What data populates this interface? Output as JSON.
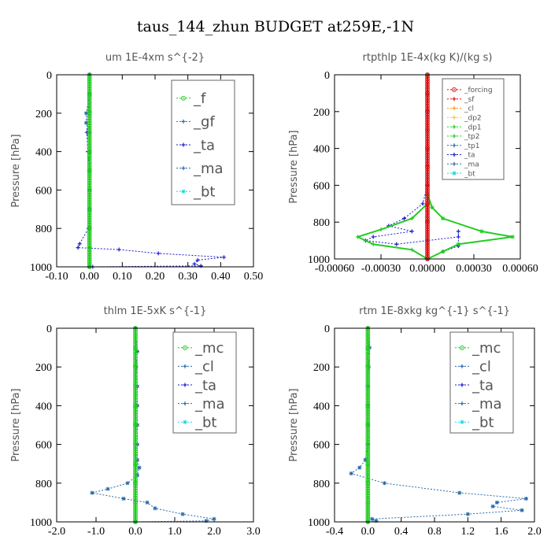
{
  "title": "taus_144_zhun  BUDGET at259E,-1N",
  "colors": {
    "green": "#22cc22",
    "blue": "#1a1acc",
    "steel": "#2a6aa8",
    "cyan": "#18d8e0",
    "red": "#dd1111",
    "orange": "#ff9922",
    "yellow": "#e8d020"
  },
  "chart_data": [
    {
      "type": "line",
      "title": "um   1E-4xm s^{-2}",
      "ylabel": "Pressure [hPa]",
      "xlim": [
        -0.1,
        0.5
      ],
      "ylim": [
        1000,
        0
      ],
      "xticks": [
        "-0.10",
        "0.00",
        "0.10",
        "0.20",
        "0.30",
        "0.40",
        "0.50"
      ],
      "xtick_values": [
        -0.1,
        0.0,
        0.1,
        0.2,
        0.3,
        0.4,
        0.5
      ],
      "yticks": [
        "0",
        "200",
        "400",
        "600",
        "800",
        "1000"
      ],
      "ytick_values": [
        0,
        200,
        400,
        600,
        800,
        1000
      ],
      "legend": {
        "position": "top-right",
        "labels": [
          "_f",
          "_gf",
          "_ta",
          "_ma",
          "_bt"
        ]
      },
      "series": [
        {
          "name": "_ta",
          "color": "blue",
          "marker": "plus",
          "points": [
            [
              0,
              0
            ],
            [
              0,
              100
            ],
            [
              -0.005,
              200
            ],
            [
              -0.008,
              300
            ],
            [
              -0.005,
              400
            ],
            [
              0,
              500
            ],
            [
              0,
              600
            ],
            [
              0,
              700
            ],
            [
              -0.003,
              800
            ],
            [
              -0.03,
              880
            ],
            [
              -0.035,
              900
            ],
            [
              0.09,
              910
            ],
            [
              0.21,
              930
            ],
            [
              0.41,
              950
            ],
            [
              0.33,
              965
            ],
            [
              0.32,
              985
            ],
            [
              0.34,
              995
            ],
            [
              0.01,
              1000
            ]
          ]
        },
        {
          "name": "_gf",
          "color": "steel",
          "marker": "star",
          "points": [
            [
              0,
              0
            ],
            [
              0,
              100
            ],
            [
              -0.01,
              200
            ],
            [
              -0.01,
              250
            ],
            [
              0,
              300
            ],
            [
              0,
              400
            ],
            [
              0,
              500
            ],
            [
              0,
              600
            ],
            [
              0,
              700
            ],
            [
              0,
              800
            ],
            [
              0,
              900
            ],
            [
              0,
              1000
            ]
          ]
        },
        {
          "name": "_f",
          "color": "green",
          "marker": "circle",
          "points": [
            [
              0,
              0
            ],
            [
              0,
              100
            ],
            [
              0,
              200
            ],
            [
              0,
              300
            ],
            [
              0,
              400
            ],
            [
              0,
              500
            ],
            [
              0,
              600
            ],
            [
              0,
              700
            ],
            [
              0,
              800
            ],
            [
              0,
              900
            ],
            [
              0,
              1000
            ]
          ]
        }
      ]
    },
    {
      "type": "line",
      "title": "rtpthlp   1E-4x(kg K)/(kg s)",
      "ylabel": "Pressure [hPa]",
      "xlim": [
        -0.0006,
        0.0006
      ],
      "ylim": [
        1000,
        0
      ],
      "xticks": [
        "-0.00060",
        "-0.00030",
        "0.00000",
        "0.00030",
        "0.00060"
      ],
      "xtick_values": [
        -0.0006,
        -0.0003,
        0,
        0.0003,
        0.0006
      ],
      "yticks": [
        "0",
        "200",
        "400",
        "600",
        "800",
        "1000"
      ],
      "ytick_values": [
        0,
        200,
        400,
        600,
        800,
        1000
      ],
      "legend": {
        "position": "top-right",
        "labels": [
          "_forcing",
          "_sf",
          "_cl",
          "_dp2",
          "_dp1",
          "_tp2",
          "_tp1",
          "_ta",
          "_ma",
          "_bt"
        ]
      },
      "series": [
        {
          "name": "_tp1",
          "color": "blue",
          "marker": "plus",
          "points": [
            [
              0,
              0
            ],
            [
              0,
              600
            ],
            [
              -3e-05,
              700
            ],
            [
              -0.00015,
              780
            ],
            [
              -0.00025,
              820
            ],
            [
              -0.0001,
              850
            ],
            [
              -0.00035,
              880
            ],
            [
              -0.0004,
              900
            ],
            [
              -0.0002,
              920
            ],
            [
              0.0002,
              880
            ],
            [
              0.0002,
              850
            ],
            [
              0.0002,
              930
            ],
            [
              0.0001,
              960
            ],
            [
              0,
              1000
            ]
          ]
        },
        {
          "name": "_dp1",
          "color": "green",
          "marker": "star",
          "points": [
            [
              0,
              0
            ],
            [
              0,
              650
            ],
            [
              3e-05,
              720
            ],
            [
              0.0001,
              780
            ],
            [
              0.00035,
              850
            ],
            [
              0.00055,
              880
            ],
            [
              0.0002,
              920
            ],
            [
              0.0001,
              960
            ],
            [
              0,
              1000
            ]
          ]
        },
        {
          "name": "_tp2",
          "color": "green",
          "marker": "plus",
          "points": [
            [
              0,
              0
            ],
            [
              0,
              700
            ],
            [
              -0.0001,
              780
            ],
            [
              -0.0003,
              840
            ],
            [
              -0.00045,
              880
            ],
            [
              -0.00035,
              920
            ],
            [
              -0.0001,
              950
            ],
            [
              0,
              1000
            ]
          ]
        },
        {
          "name": "_forcing",
          "color": "red",
          "marker": "circle",
          "points": [
            [
              0,
              0
            ],
            [
              0,
              100
            ],
            [
              0,
              200
            ],
            [
              0,
              300
            ],
            [
              0,
              400
            ],
            [
              0,
              500
            ],
            [
              0,
              600
            ],
            [
              0,
              700
            ],
            [
              0,
              800
            ],
            [
              0,
              900
            ],
            [
              0,
              1000
            ]
          ]
        }
      ]
    },
    {
      "type": "line",
      "title": "thlm   1E-5xK s^{-1}",
      "ylabel": "Pressure [hPa]",
      "xlim": [
        -2.0,
        3.0
      ],
      "ylim": [
        1000,
        0
      ],
      "xticks": [
        "-2.0",
        "-1.0",
        "0.0",
        "1.0",
        "2.0",
        "3.0"
      ],
      "xtick_values": [
        -2,
        -1,
        0,
        1,
        2,
        3
      ],
      "yticks": [
        "0",
        "200",
        "400",
        "600",
        "800",
        "1000"
      ],
      "ytick_values": [
        0,
        200,
        400,
        600,
        800,
        1000
      ],
      "legend": {
        "position": "top-right",
        "labels": [
          "_mc",
          "_cl",
          "_ta",
          "_ma",
          "_bt"
        ]
      },
      "series": [
        {
          "name": "_cl",
          "color": "steel",
          "marker": "star",
          "points": [
            [
              0,
              0
            ],
            [
              0.05,
              120
            ],
            [
              0.02,
              200
            ],
            [
              0.05,
              300
            ],
            [
              0.05,
              400
            ],
            [
              0.05,
              500
            ],
            [
              0.05,
              600
            ],
            [
              0.05,
              680
            ],
            [
              0.1,
              720
            ],
            [
              0.05,
              760
            ],
            [
              -0.2,
              800
            ],
            [
              -0.7,
              830
            ],
            [
              -1.1,
              850
            ],
            [
              -0.3,
              880
            ],
            [
              0.3,
              900
            ],
            [
              0.5,
              930
            ],
            [
              1.2,
              960
            ],
            [
              2.0,
              985
            ],
            [
              1.8,
              995
            ],
            [
              0,
              1000
            ]
          ]
        },
        {
          "name": "_mc",
          "color": "green",
          "marker": "circle",
          "points": [
            [
              0,
              0
            ],
            [
              0,
              100
            ],
            [
              0,
              200
            ],
            [
              0,
              300
            ],
            [
              0,
              400
            ],
            [
              0,
              500
            ],
            [
              0,
              600
            ],
            [
              0,
              700
            ],
            [
              0,
              800
            ],
            [
              0,
              900
            ],
            [
              0,
              1000
            ]
          ]
        }
      ]
    },
    {
      "type": "line",
      "title": "rtm   1E-8xkg kg^{-1} s^{-1}",
      "ylabel": "Pressure [hPa]",
      "xlim": [
        -0.4,
        2.0
      ],
      "ylim": [
        1000,
        0
      ],
      "xticks": [
        "-0.4",
        "0.0",
        "0.4",
        "0.8",
        "1.2",
        "1.6",
        "2.0"
      ],
      "xtick_values": [
        -0.4,
        0.0,
        0.4,
        0.8,
        1.2,
        1.6,
        2.0
      ],
      "yticks": [
        "0",
        "200",
        "400",
        "600",
        "800",
        "1000"
      ],
      "ytick_values": [
        0,
        200,
        400,
        600,
        800,
        1000
      ],
      "legend": {
        "position": "top-right",
        "labels": [
          "_mc",
          "_cl",
          "_ta",
          "_ma",
          "_bt"
        ]
      },
      "series": [
        {
          "name": "_cl",
          "color": "steel",
          "marker": "star",
          "points": [
            [
              0,
              0
            ],
            [
              0.02,
              100
            ],
            [
              0.01,
              200
            ],
            [
              0.0,
              300
            ],
            [
              0,
              400
            ],
            [
              0,
              500
            ],
            [
              0,
              600
            ],
            [
              -0.03,
              680
            ],
            [
              -0.1,
              720
            ],
            [
              -0.2,
              750
            ],
            [
              0.2,
              800
            ],
            [
              1.1,
              850
            ],
            [
              1.9,
              880
            ],
            [
              1.55,
              900
            ],
            [
              1.5,
              920
            ],
            [
              1.85,
              940
            ],
            [
              1.2,
              960
            ],
            [
              0.05,
              985
            ],
            [
              0.1,
              995
            ],
            [
              0,
              1000
            ]
          ]
        },
        {
          "name": "_mc",
          "color": "green",
          "marker": "circle",
          "points": [
            [
              0,
              0
            ],
            [
              0,
              100
            ],
            [
              0,
              200
            ],
            [
              0,
              300
            ],
            [
              0,
              400
            ],
            [
              0,
              500
            ],
            [
              0,
              600
            ],
            [
              0,
              700
            ],
            [
              0,
              800
            ],
            [
              0,
              900
            ],
            [
              0,
              1000
            ]
          ]
        }
      ]
    }
  ]
}
